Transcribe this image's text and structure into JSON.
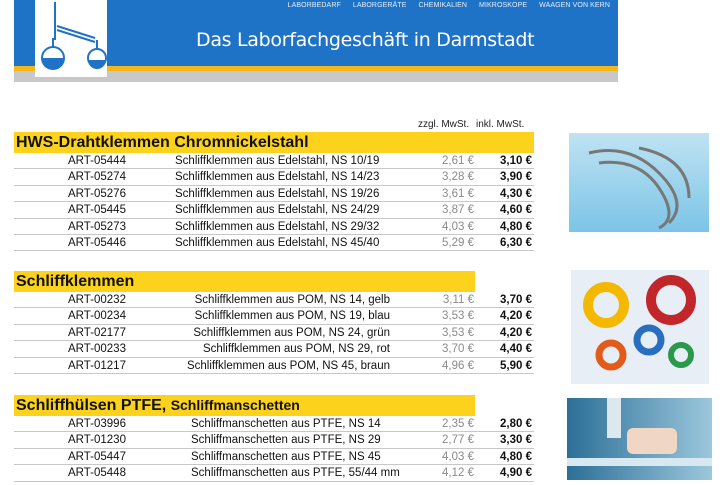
{
  "header": {
    "nav": [
      "LABORBEDARF",
      "LABORGERÄTE",
      "CHEMIKALIEN",
      "MIKROSKOPE",
      "WAAGEN VON KERN"
    ],
    "tagline": "Das Laborfachgeschäft in Darmstadt"
  },
  "columns": {
    "net": "zzgl. MwSt.",
    "gross": "inkl. MwSt."
  },
  "sections": [
    {
      "title": "HWS-Drahtklemmen Chromnickelstahl",
      "rows": [
        {
          "code": "ART-05444",
          "desc": "Schliffklemmen aus Edelstahl, NS 10/19",
          "net": "2,61 €",
          "gross": "3,10 €"
        },
        {
          "code": "ART-05274",
          "desc": "Schliffklemmen aus Edelstahl, NS 14/23",
          "net": "3,28 €",
          "gross": "3,90 €"
        },
        {
          "code": "ART-05276",
          "desc": "Schliffklemmen aus Edelstahl, NS 19/26",
          "net": "3,61 €",
          "gross": "4,30 €"
        },
        {
          "code": "ART-05445",
          "desc": "Schliffklemmen aus Edelstahl, NS 24/29",
          "net": "3,87 €",
          "gross": "4,60 €"
        },
        {
          "code": "ART-05273",
          "desc": "Schliffklemmen aus Edelstahl, NS 29/32",
          "net": "4,03 €",
          "gross": "4,80 €"
        },
        {
          "code": "ART-05446",
          "desc": "Schliffklemmen aus Edelstahl, NS 45/40",
          "net": "5,29 €",
          "gross": "6,30 €"
        }
      ]
    },
    {
      "title": "Schliffklemmen",
      "rows": [
        {
          "code": "ART-00232",
          "desc": "Schliffklemmen aus POM, NS 14, gelb",
          "net": "3,11 €",
          "gross": "3,70 €"
        },
        {
          "code": "ART-00234",
          "desc": "Schliffklemmen aus POM, NS 19, blau",
          "net": "3,53 €",
          "gross": "4,20 €"
        },
        {
          "code": "ART-02177",
          "desc": "Schliffklemmen aus POM, NS 24, grün",
          "net": "3,53 €",
          "gross": "4,20 €"
        },
        {
          "code": "ART-00233",
          "desc": "Schliffklemmen aus POM, NS 29, rot",
          "net": "3,70 €",
          "gross": "4,40 €"
        },
        {
          "code": "ART-01217",
          "desc": "Schliffklemmen aus POM, NS 45, braun",
          "net": "4,96 €",
          "gross": "5,90 €"
        }
      ]
    },
    {
      "title": "Schliffhülsen PTFE,",
      "title2": "Schliffmanschetten",
      "rows": [
        {
          "code": "ART-03996",
          "desc": "Schliffmanschetten aus PTFE, NS 14",
          "net": "2,35 €",
          "gross": "2,80 €"
        },
        {
          "code": "ART-01230",
          "desc": "Schliffmanschetten aus PTFE, NS 29",
          "net": "2,77 €",
          "gross": "3,30 €"
        },
        {
          "code": "ART-05447",
          "desc": "Schliffmanschetten aus PTFE, NS 45",
          "net": "4,03 €",
          "gross": "4,80 €"
        },
        {
          "code": "ART-05448",
          "desc": "Schliffmanschetten aus PTFE, 55/44  mm",
          "net": "4,12 €",
          "gross": "4,90 €"
        }
      ]
    }
  ]
}
